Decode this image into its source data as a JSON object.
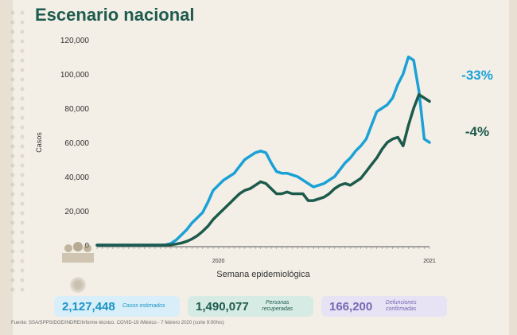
{
  "title": "Escenario nacional",
  "chart_data": {
    "type": "line",
    "ylabel": "Casos",
    "xlabel": "Semana epidemiológica",
    "ylim": [
      0,
      120000
    ],
    "yticks": [
      "0",
      "20,000",
      "40,000",
      "60,000",
      "80,000",
      "100,000",
      "120,000"
    ],
    "x_tick_labels": [
      "2020",
      "2021"
    ],
    "x": [
      1,
      2,
      3,
      4,
      5,
      6,
      7,
      8,
      9,
      10,
      11,
      12,
      13,
      14,
      15,
      16,
      17,
      18,
      19,
      20,
      21,
      22,
      23,
      24,
      25,
      26,
      27,
      28,
      29,
      30,
      31,
      32,
      33,
      34,
      35,
      36,
      37,
      38,
      39,
      40,
      41,
      42,
      43,
      44,
      45,
      46,
      47,
      48,
      49,
      50,
      51,
      52,
      53,
      54,
      55,
      56,
      57,
      58,
      59,
      60,
      61,
      62,
      63,
      64
    ],
    "series": [
      {
        "color": "#1ba1d6",
        "values": [
          0,
          0,
          0,
          0,
          0,
          0,
          0,
          0,
          0,
          0,
          0,
          0,
          0,
          200,
          1000,
          3000,
          6000,
          9000,
          13000,
          16000,
          19000,
          25000,
          32000,
          35000,
          38000,
          40000,
          42000,
          46000,
          50000,
          52000,
          54000,
          55000,
          54000,
          48000,
          43000,
          42000,
          42000,
          41000,
          40000,
          38000,
          36000,
          34000,
          35000,
          36000,
          38000,
          40000,
          44000,
          48000,
          51000,
          55000,
          58000,
          62000,
          70000,
          78000,
          80000,
          82000,
          86000,
          94000,
          100000,
          110000,
          108000,
          90000,
          62000,
          60000
        ],
        "end_label": "-33%"
      },
      {
        "color": "#1c5a4b",
        "values": [
          0,
          0,
          0,
          0,
          0,
          0,
          0,
          0,
          0,
          0,
          0,
          0,
          0,
          0,
          200,
          600,
          1200,
          2200,
          3600,
          5500,
          8000,
          11000,
          15000,
          18000,
          21000,
          24000,
          27000,
          30000,
          32000,
          33000,
          35000,
          37000,
          36000,
          33000,
          30000,
          30000,
          31000,
          30000,
          30000,
          30000,
          26000,
          26000,
          27000,
          28000,
          30000,
          33000,
          35000,
          36000,
          35000,
          37000,
          39000,
          43000,
          47000,
          51000,
          56000,
          60000,
          62000,
          63000,
          58000,
          70000,
          80000,
          88000,
          86000,
          84000
        ],
        "end_label": "-4%"
      }
    ]
  },
  "stats": [
    {
      "value": "2,127,448",
      "label": "Casos estimados",
      "color": "#1b93c6"
    },
    {
      "value": "1,490,077",
      "label": "Personas recuperadas",
      "color": "#1c5a4b"
    },
    {
      "value": "166,200",
      "label": "Defunciones confirmadas",
      "color": "#7768b4"
    }
  ],
  "footer": "Fuente: SSA/SPPS/DGE/INDRE/Informe técnico. COVID-19 /México - 7 febrero 2020 (corte 9:00hrs)"
}
